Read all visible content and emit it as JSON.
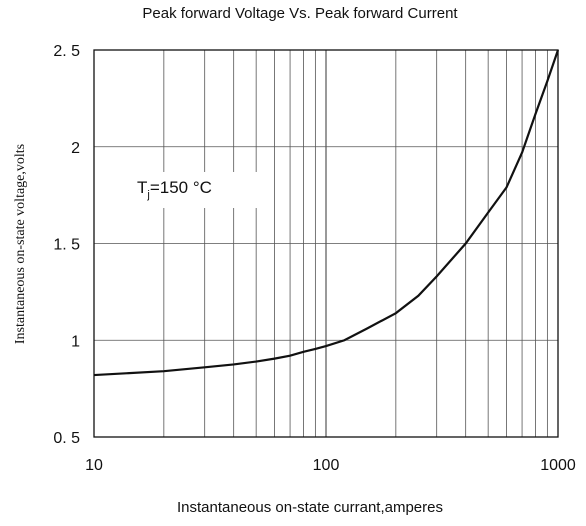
{
  "chart_data": {
    "type": "line",
    "title": "Peak forward Voltage Vs. Peak forward Current",
    "xlabel": "Instantaneous on-state currant,amperes",
    "ylabel": "Instantaneous on-state voltage,volts",
    "x_scale": "log",
    "xlim": [
      10,
      1000
    ],
    "ylim": [
      0.5,
      2.5
    ],
    "x_tick_labels": [
      "10",
      "100",
      "1000"
    ],
    "y_tick_labels": [
      "0. 5",
      "1",
      "1. 5",
      "2",
      "2. 5"
    ],
    "grid": true,
    "annotation": {
      "main": "T",
      "sub": "j",
      "rest": "=150 °C"
    },
    "series": [
      {
        "x": [
          10,
          20,
          30,
          40,
          50,
          60,
          70,
          80,
          90,
          100,
          120,
          150,
          200,
          250,
          300,
          400,
          500,
          600,
          700,
          800,
          900,
          1000
        ],
        "y": [
          0.82,
          0.84,
          0.86,
          0.875,
          0.89,
          0.905,
          0.92,
          0.94,
          0.955,
          0.97,
          1.0,
          1.06,
          1.14,
          1.23,
          1.33,
          1.5,
          1.66,
          1.79,
          1.97,
          2.17,
          2.34,
          2.5
        ]
      }
    ]
  }
}
